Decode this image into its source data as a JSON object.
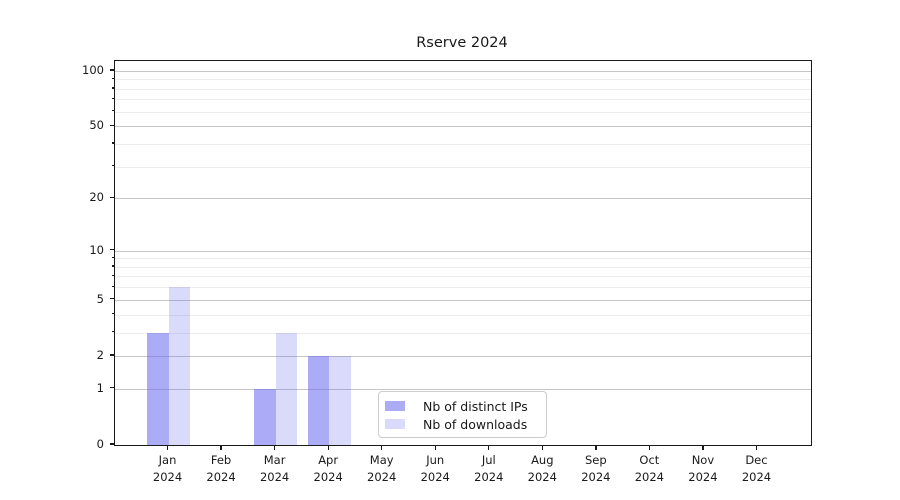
{
  "chart_data": {
    "type": "bar",
    "title": "Rserve 2024",
    "xlabel": "",
    "ylabel": "",
    "categories": [
      "Jan",
      "Feb",
      "Mar",
      "Apr",
      "May",
      "Jun",
      "Jul",
      "Aug",
      "Sep",
      "Oct",
      "Nov",
      "Dec"
    ],
    "category_year": "2024",
    "series": [
      {
        "name": "Nb of distinct IPs",
        "color": "rgba(102,102,238,0.55)",
        "values": [
          3,
          0,
          1,
          2,
          0,
          0,
          0,
          0,
          0,
          0,
          0,
          0
        ]
      },
      {
        "name": "Nb of downloads",
        "color": "rgba(102,102,238,0.24)",
        "values": [
          6,
          0,
          3,
          2,
          0,
          0,
          0,
          0,
          0,
          0,
          0,
          0
        ]
      }
    ],
    "yscale": "log1p",
    "ylim": [
      0,
      113
    ],
    "y_major_ticks": [
      0,
      1,
      2,
      5,
      10,
      20,
      50,
      100
    ],
    "y_minor_ticks": [
      3,
      4,
      6,
      7,
      8,
      9,
      30,
      40,
      60,
      70,
      80,
      90
    ],
    "grid": "both",
    "legend_position": "lower center",
    "colors": {
      "bar_base": "#6666ee",
      "major_grid": "#c6c6c6",
      "minor_grid": "#ececec",
      "text": "#1a1a1a",
      "spine": "#1a1a1a",
      "legend_border": "#cccccc"
    }
  }
}
